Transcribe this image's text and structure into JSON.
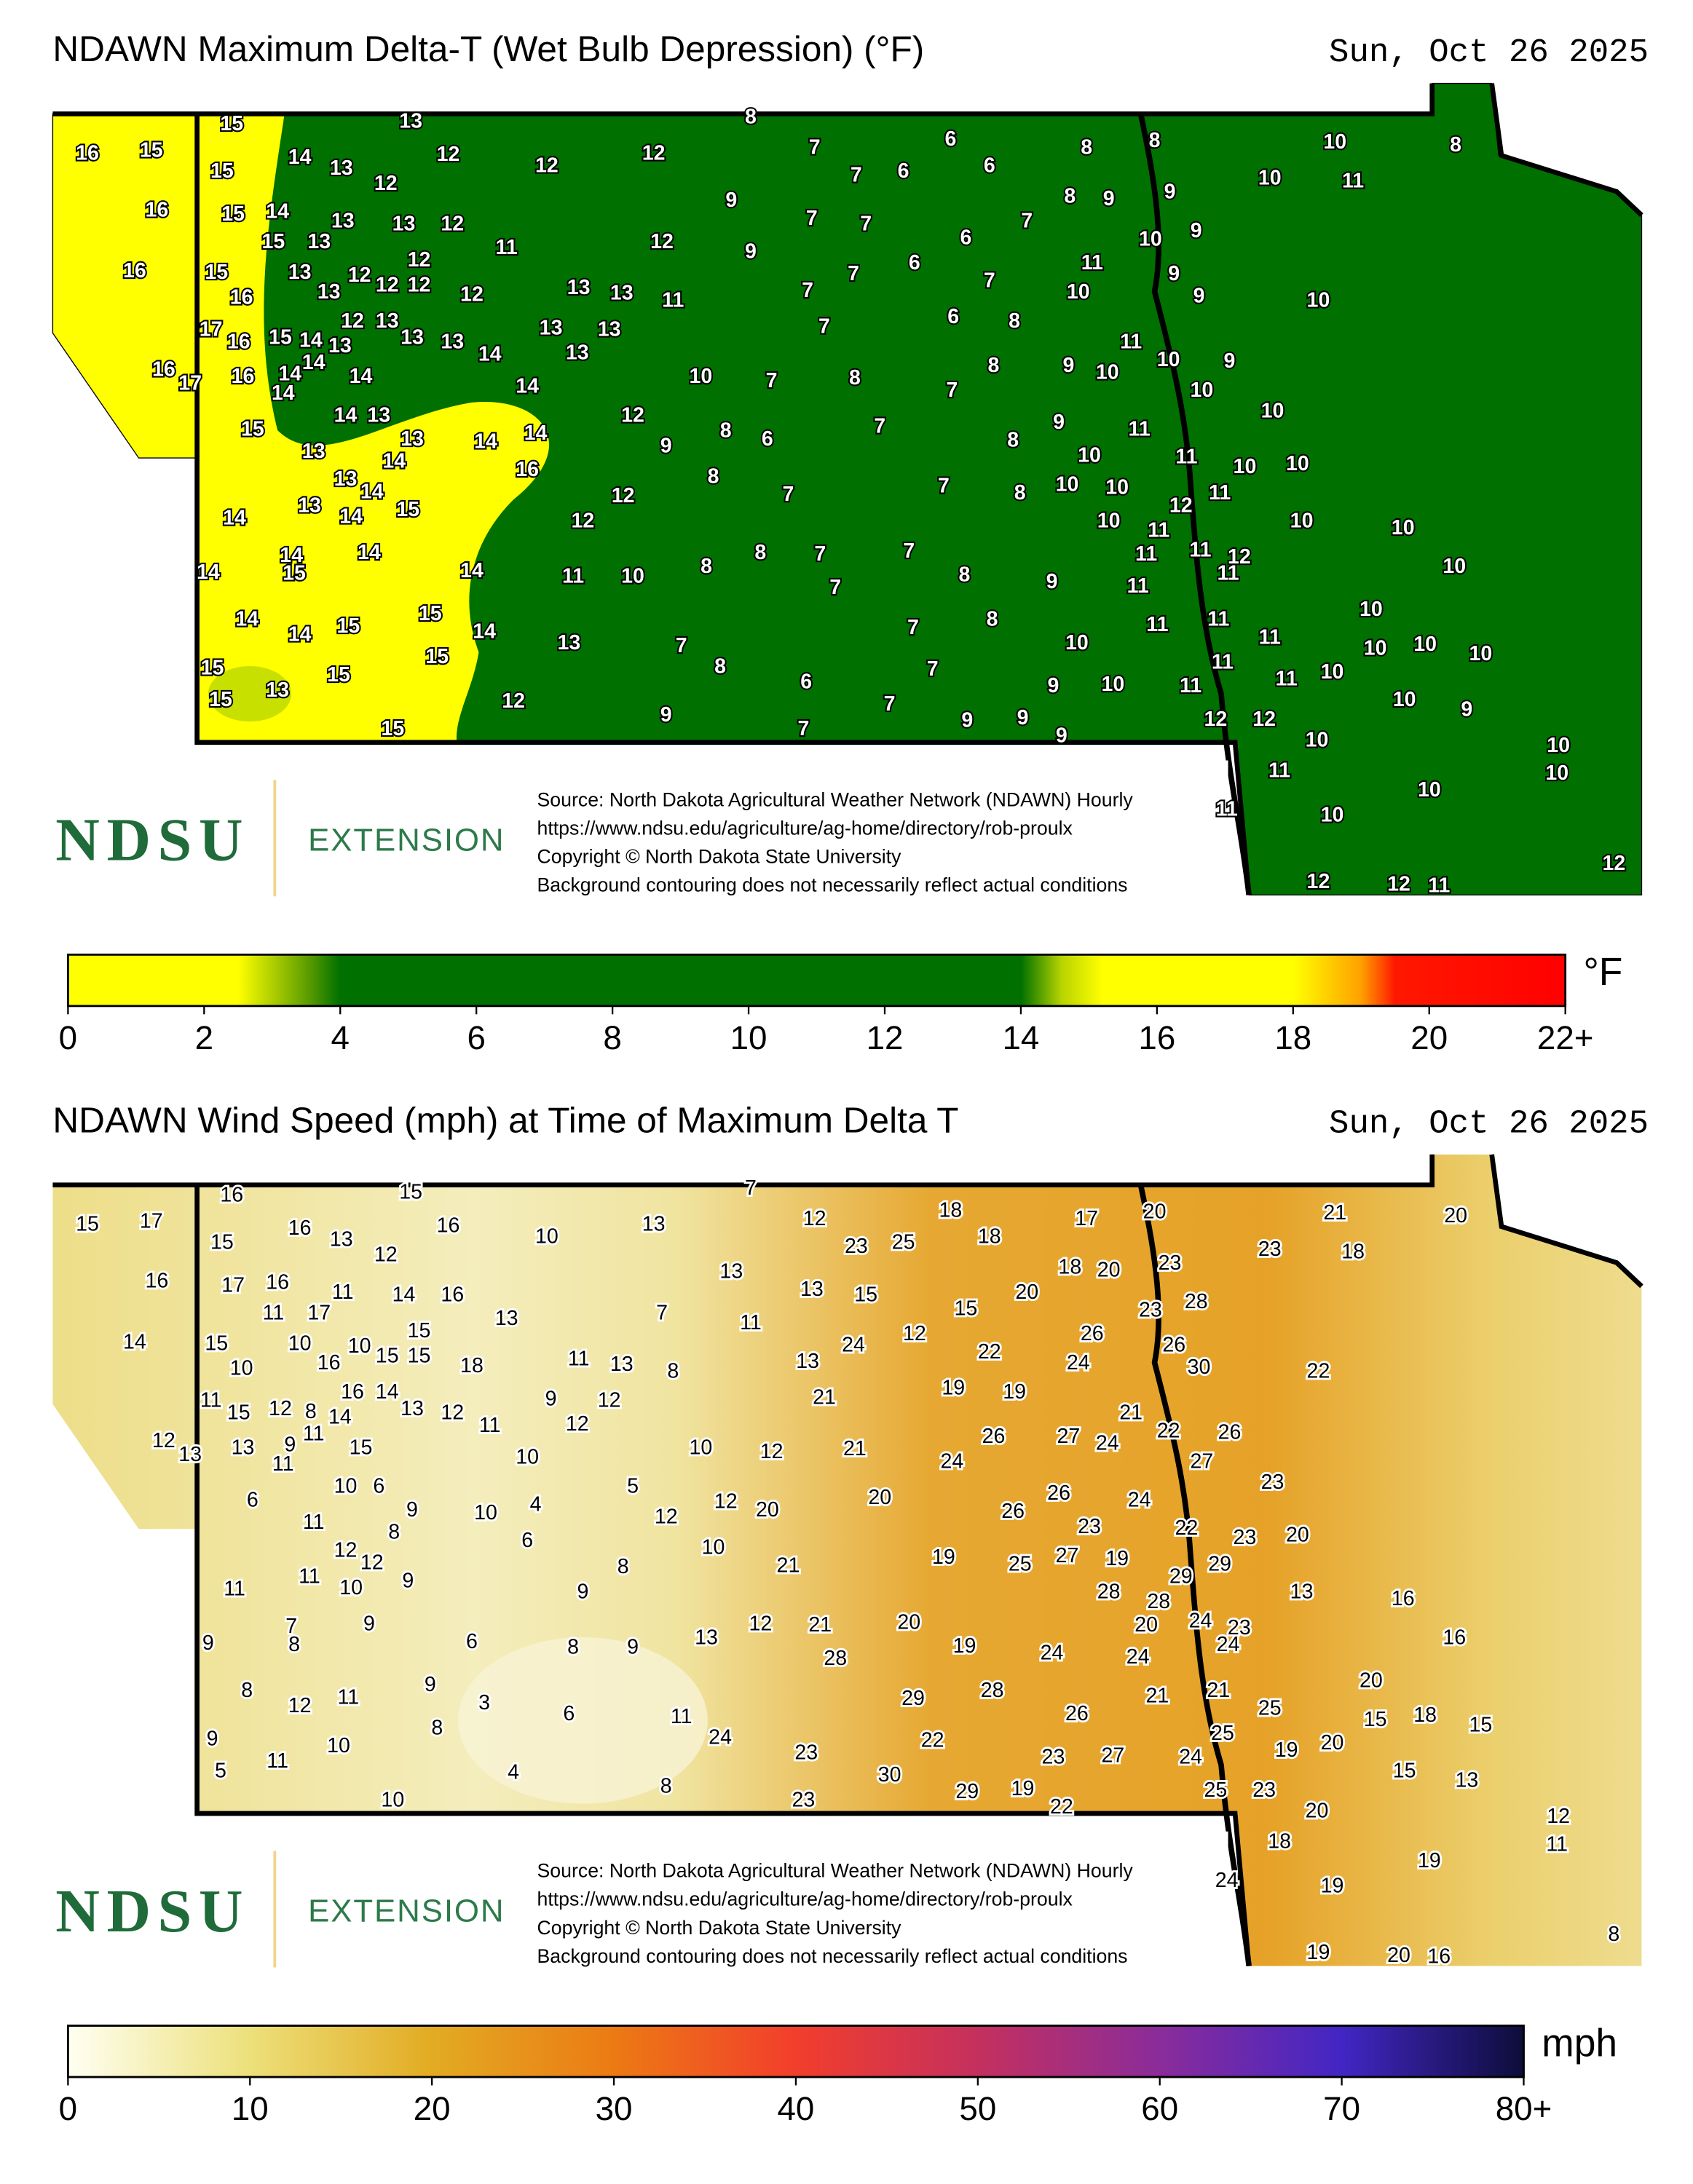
{
  "maps": [
    {
      "title": "NDAWN Maximum Delta-T (Wet Bulb Depression) (°F)",
      "date": "Sun, Oct 26 2025",
      "logo": "NDSU",
      "logo_subtitle": "EXTENSION",
      "source_lines": [
        "Source: North Dakota Agricultural Weather Network (NDAWN) Hourly",
        "https://www.ndsu.edu/agriculture/ag-home/directory/rob-proulx",
        "Copyright © North Dakota State University",
        "Background contouring does not necessarily reflect actual conditions"
      ],
      "stations": [
        15,
        13,
        8,
        16,
        15,
        15,
        14,
        13,
        12,
        12,
        12,
        12,
        7,
        7,
        6,
        6,
        6,
        8,
        8,
        10,
        8,
        16,
        15,
        14,
        13,
        13,
        12,
        9,
        7,
        7,
        8,
        9,
        9,
        10,
        11,
        16,
        15,
        15,
        13,
        12,
        11,
        12,
        9,
        6,
        7,
        10,
        9,
        16,
        13,
        13,
        12,
        12,
        12,
        12,
        13,
        13,
        11,
        7,
        7,
        6,
        7,
        11,
        10,
        9,
        9,
        10,
        17,
        16,
        15,
        14,
        13,
        12,
        13,
        13,
        13,
        14,
        13,
        13,
        13,
        7,
        6,
        8,
        16,
        17,
        16,
        14,
        14,
        14,
        14,
        14,
        10,
        7,
        8,
        7,
        8,
        9,
        10,
        11,
        10,
        9,
        10,
        15,
        14,
        13,
        12,
        9,
        8,
        6,
        7,
        9,
        11,
        10,
        13,
        13,
        14,
        14,
        14,
        8,
        10,
        11,
        10,
        10,
        16,
        13,
        14,
        14,
        13,
        14,
        15,
        12,
        8,
        7,
        7,
        8,
        10,
        10,
        12,
        11,
        12,
        10,
        11,
        10,
        10,
        14,
        15,
        14,
        14,
        14,
        11,
        10,
        8,
        8,
        7,
        7,
        7,
        8,
        9,
        11,
        11,
        12,
        11,
        11,
        10,
        14,
        14,
        15,
        15,
        14,
        13,
        7,
        7,
        8,
        10,
        11,
        11,
        11,
        10,
        15,
        13,
        15,
        15,
        8,
        7,
        9,
        10,
        11,
        11,
        10,
        10,
        10,
        10,
        15,
        12,
        6,
        7,
        9,
        9,
        11,
        10,
        9,
        15,
        9,
        7,
        9,
        12,
        12,
        10,
        10,
        10,
        11,
        10,
        11,
        10,
        12,
        12,
        11,
        12
      ],
      "colorbar": {
        "range": [
          0,
          22
        ],
        "ticks": [
          0,
          2,
          4,
          6,
          8,
          10,
          12,
          14,
          16,
          18,
          20,
          {
            "value": 22,
            "label": "22+"
          }
        ],
        "unit": "°F",
        "stops": [
          {
            "value": 0,
            "color": "#ffff00"
          },
          {
            "value": 2.5,
            "color": "#ffff00"
          },
          {
            "value": 3.6,
            "color": "#4f9600"
          },
          {
            "value": 4,
            "color": "#007000"
          },
          {
            "value": 14,
            "color": "#007000"
          },
          {
            "value": 14.6,
            "color": "#b8d400"
          },
          {
            "value": 15.2,
            "color": "#ffff00"
          },
          {
            "value": 18,
            "color": "#ffff00"
          },
          {
            "value": 19,
            "color": "#ffa000"
          },
          {
            "value": 19.5,
            "color": "#ff1800"
          },
          {
            "value": 22,
            "color": "#ff0000"
          }
        ]
      }
    },
    {
      "title": "NDAWN Wind Speed (mph) at Time of Maximum Delta T",
      "date": "Sun, Oct 26 2025",
      "logo": "NDSU",
      "logo_subtitle": "EXTENSION",
      "source_lines": [
        "Source: North Dakota Agricultural Weather Network (NDAWN) Hourly",
        "https://www.ndsu.edu/agriculture/ag-home/directory/rob-proulx",
        "Copyright © North Dakota State University",
        "Background contouring does not necessarily reflect actual conditions"
      ],
      "stations": [
        16,
        15,
        7,
        15,
        17,
        15,
        16,
        13,
        12,
        16,
        10,
        13,
        12,
        23,
        25,
        18,
        18,
        17,
        20,
        21,
        20,
        16,
        17,
        16,
        11,
        14,
        16,
        13,
        13,
        15,
        18,
        20,
        23,
        23,
        18,
        14,
        15,
        11,
        17,
        15,
        13,
        7,
        11,
        15,
        20,
        23,
        28,
        10,
        10,
        16,
        10,
        15,
        15,
        18,
        11,
        13,
        8,
        13,
        24,
        12,
        22,
        26,
        24,
        26,
        30,
        22,
        11,
        15,
        12,
        8,
        14,
        16,
        14,
        13,
        12,
        11,
        9,
        12,
        12,
        21,
        19,
        19,
        12,
        13,
        13,
        9,
        11,
        11,
        15,
        10,
        10,
        12,
        21,
        24,
        26,
        27,
        24,
        21,
        22,
        26,
        27,
        6,
        10,
        6,
        5,
        12,
        12,
        20,
        20,
        26,
        24,
        23,
        11,
        9,
        8,
        10,
        4,
        26,
        23,
        22,
        23,
        20,
        6,
        12,
        12,
        11,
        11,
        10,
        9,
        8,
        10,
        21,
        19,
        25,
        27,
        19,
        29,
        29,
        9,
        28,
        28,
        13,
        16,
        7,
        8,
        9,
        9,
        6,
        8,
        9,
        13,
        12,
        21,
        28,
        20,
        19,
        24,
        20,
        24,
        23,
        24,
        24,
        16,
        8,
        12,
        11,
        9,
        3,
        6,
        11,
        29,
        28,
        26,
        21,
        21,
        25,
        20,
        9,
        11,
        10,
        8,
        24,
        22,
        23,
        27,
        25,
        19,
        20,
        15,
        18,
        15,
        5,
        4,
        23,
        30,
        29,
        19,
        24,
        15,
        13,
        10,
        8,
        23,
        22,
        25,
        23,
        20,
        12,
        11,
        18,
        19,
        24,
        19,
        19,
        20,
        16,
        8
      ],
      "colorbar": {
        "range": [
          0,
          80
        ],
        "ticks": [
          0,
          10,
          20,
          30,
          40,
          50,
          60,
          70,
          {
            "value": 80,
            "label": "80+"
          }
        ],
        "unit": "mph",
        "stops": [
          {
            "value": 0,
            "color": "#fffff2"
          },
          {
            "value": 10,
            "color": "#ece07a"
          },
          {
            "value": 20,
            "color": "#e2ab22"
          },
          {
            "value": 30,
            "color": "#ec7a14"
          },
          {
            "value": 40,
            "color": "#f23e2c"
          },
          {
            "value": 50,
            "color": "#c4305e"
          },
          {
            "value": 60,
            "color": "#8a2c9a"
          },
          {
            "value": 70,
            "color": "#4226c4"
          },
          {
            "value": 80,
            "color": "#0d0d3a"
          }
        ]
      }
    }
  ]
}
